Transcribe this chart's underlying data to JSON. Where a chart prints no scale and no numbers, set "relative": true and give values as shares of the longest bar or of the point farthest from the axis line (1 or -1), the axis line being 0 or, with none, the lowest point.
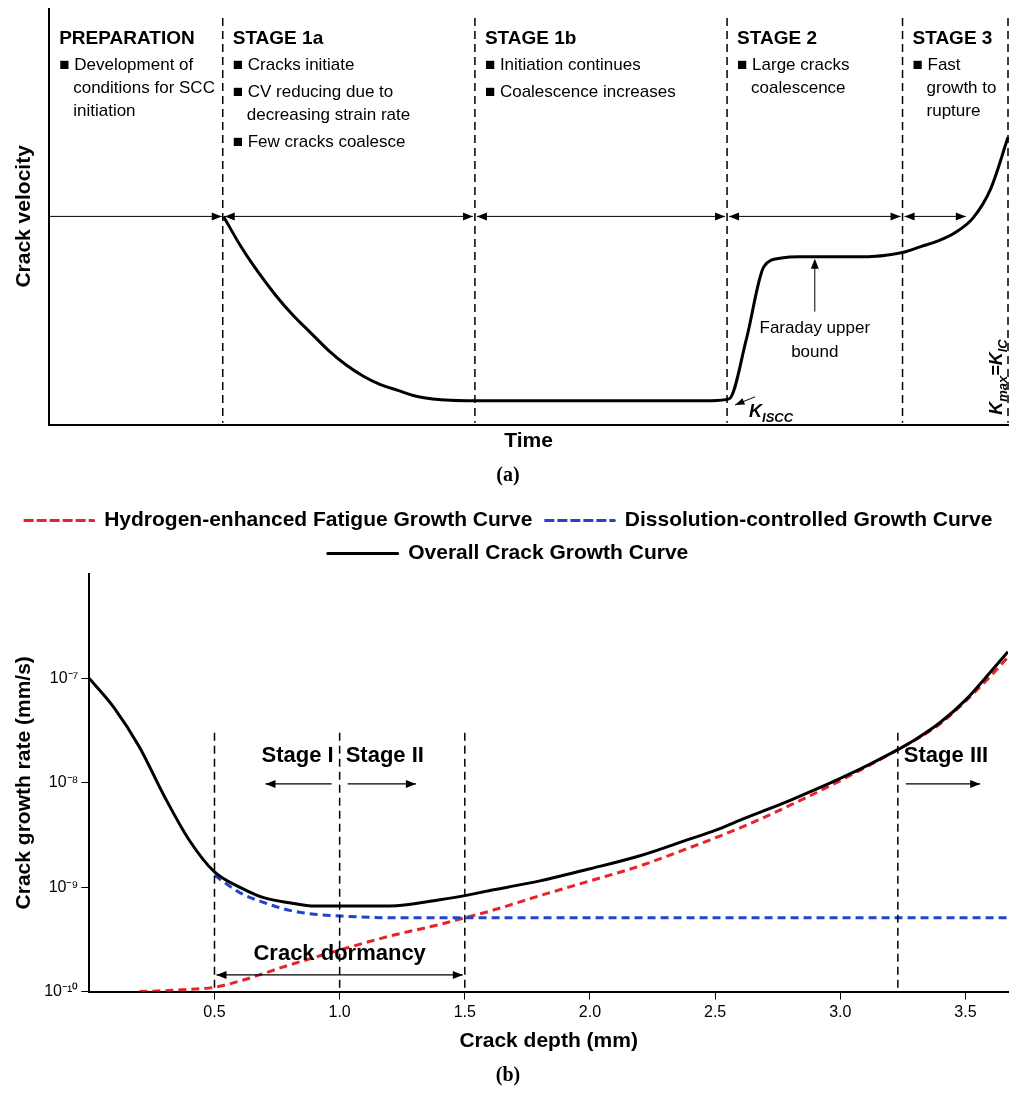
{
  "chart_data": [
    {
      "type": "line",
      "title": "(a)",
      "xlabel": "Time",
      "ylabel": "Crack velocity",
      "relative": true,
      "tick_labels": false,
      "grid": "x",
      "marker": "none",
      "line_style": "solid",
      "categories": [
        null,
        null,
        null,
        null,
        null,
        null,
        null,
        null,
        null,
        null,
        null,
        null,
        null,
        null,
        null,
        null,
        null,
        null,
        null,
        null,
        null,
        null,
        null,
        null,
        null,
        null,
        null,
        null,
        null,
        null,
        null,
        null,
        null,
        null,
        null,
        null,
        null,
        null,
        null,
        null,
        null,
        null,
        null,
        null,
        null,
        null,
        null,
        null,
        null,
        null,
        null,
        null,
        null,
        null,
        null,
        null
      ],
      "series": [
        {
          "color": "#000000",
          "values": [
            null,
            null,
            null,
            null,
            null,
            null,
            null,
            null,
            null,
            null,
            0.725,
            0.62,
            0.53,
            0.45,
            0.38,
            0.32,
            0.26,
            0.21,
            0.17,
            0.14,
            0.12,
            0.1,
            0.09,
            0.085,
            0.084,
            0.084,
            0.084,
            0.084,
            0.084,
            0.084,
            0.084,
            0.084,
            0.084,
            0.084,
            0.084,
            0.084,
            0.084,
            0.084,
            0.084,
            0.09,
            0.3,
            0.55,
            0.58,
            0.585,
            0.585,
            0.585,
            0.585,
            0.585,
            0.59,
            0.6,
            0.62,
            0.64,
            0.67,
            0.72,
            0.82,
            1.0
          ]
        }
      ],
      "annotations": [
        "PREPARATION\n■ Development of conditions for SCC initiation",
        "STAGE 1a\n■ Cracks initiate\n■ CV reducing due to decreasing strain rate\n■ Few cracks coalesce",
        "STAGE 1b\n■ Initiation continues\n■ Coalescence increases",
        "STAGE 2\n■ Large cracks coalescence",
        "STAGE 3\n■ Fast growth to rupture",
        {
          "text": "Faraday upper bound",
          "y": 0.585
        },
        "K$_{ISCC}$",
        "K$_{max}$=K$_{IC}$"
      ]
    },
    {
      "type": "line",
      "title": "(b)",
      "xlabel": "Crack depth (mm)",
      "ylabel": "Crack growth rate (mm/s)",
      "log": "y",
      "legend": "top",
      "marker": "none",
      "grid": false,
      "xlim": [
        0,
        3.67
      ],
      "xticks": [
        0.5,
        {
          "value": 1,
          "label": "1.0"
        },
        1.5,
        {
          "value": 2,
          "label": "2.0"
        },
        2.5,
        {
          "value": 3,
          "label": "3.0"
        },
        3.5
      ],
      "ylim": [
        1e-10,
        1e-06
      ],
      "yticks": [
        {
          "value": 1e-10,
          "label": "10⁻¹⁰"
        },
        {
          "value": 1e-09,
          "label": "10⁻⁹"
        },
        {
          "value": 1e-08,
          "label": "10⁻⁸"
        },
        {
          "value": 1e-07,
          "label": "10⁻⁷"
        }
      ],
      "series": [
        {
          "name": "Hydrogen-enhanced Fatigue Growth Curve",
          "color": "#e8242a",
          "line_style": "dashed",
          "x": [
            0.2,
            0.3,
            0.4,
            0.5,
            0.6,
            0.8,
            1.0,
            1.2,
            1.4,
            1.5,
            1.6,
            1.8,
            2.0,
            2.2,
            2.4,
            2.6,
            2.8,
            3.0,
            3.2,
            3.4,
            3.6,
            3.67
          ],
          "values": [
            1e-10,
            1.02e-10,
            1.05e-10,
            1.1e-10,
            1.26e-10,
            1.8e-10,
            2.5e-10,
            3.4e-10,
            4.4e-10,
            5.1e-10,
            5.9e-10,
            8.3e-10,
            1.15e-09,
            1.6e-09,
            2.4e-09,
            3.7e-09,
            6.1e-09,
            1.05e-08,
            1.9e-08,
            3.7e-08,
            1.05e-07,
            1.6e-07
          ]
        },
        {
          "name": "Dissolution-controlled Growth Curve",
          "color": "#2244cc",
          "line_style": "dashed",
          "x": [
            0.5,
            0.6,
            0.7,
            0.8,
            0.9,
            1.0,
            1.2,
            1.5,
            2.0,
            2.5,
            3.0,
            3.5,
            3.67
          ],
          "values": [
            1.3e-09,
            8.9e-10,
            7.1e-10,
            6e-10,
            5.5e-10,
            5.3e-10,
            5.1e-10,
            5.1e-10,
            5.1e-10,
            5.1e-10,
            5.1e-10,
            5.1e-10,
            5.1e-10
          ]
        },
        {
          "name": "Overall Crack Growth Curve",
          "color": "#000000",
          "line_style": "solid",
          "x": [
            0,
            0.1,
            0.2,
            0.3,
            0.4,
            0.5,
            0.6,
            0.7,
            0.8,
            0.9,
            1.0,
            1.2,
            1.4,
            1.5,
            1.6,
            1.8,
            2.0,
            2.2,
            2.4,
            2.5,
            2.6,
            2.8,
            3.0,
            3.2,
            3.3,
            3.4,
            3.5,
            3.6,
            3.67
          ],
          "values": [
            1e-07,
            5.2e-08,
            2.2e-08,
            7.4e-09,
            2.8e-09,
            1.4e-09,
            1e-09,
            7.9e-10,
            7.1e-10,
            6.6e-10,
            6.6e-10,
            6.6e-10,
            7.6e-10,
            8.3e-10,
            9.3e-10,
            1.15e-09,
            1.5e-09,
            2e-09,
            2.9e-09,
            3.5e-09,
            4.4e-09,
            6.8e-09,
            1.1e-08,
            1.9e-08,
            2.6e-08,
            3.8e-08,
            6.2e-08,
            1.15e-07,
            1.8e-07
          ]
        }
      ],
      "ref_lines": [
        {
          "axis": "x",
          "value": 0.5,
          "color": "#000000",
          "line_style": "dashed"
        },
        {
          "axis": "x",
          "value": 1.0,
          "color": "#000000",
          "line_style": "dashed"
        },
        {
          "axis": "x",
          "value": 1.5,
          "color": "#000000",
          "line_style": "dashed"
        },
        {
          "axis": "x",
          "value": 3.23,
          "color": "#000000",
          "line_style": "dashed"
        }
      ],
      "annotations": [
        "Stage I",
        "Stage II",
        "Stage III",
        "Crack dormancy"
      ]
    }
  ]
}
